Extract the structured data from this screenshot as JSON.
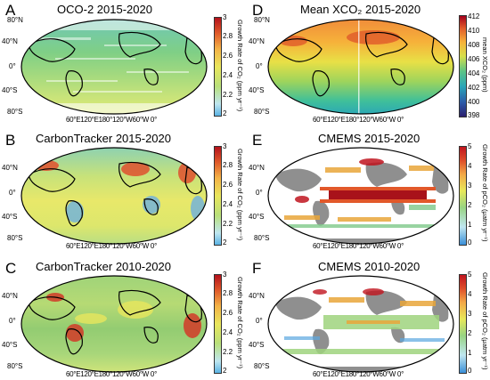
{
  "colors": {
    "ocean_gray": "#9a9a9a",
    "land_gray": "#7f7f7f",
    "growth_low": "#3a8fd8",
    "growth_mid": "#e8e85a",
    "growth_high": "#c0141e",
    "xco2_low": "#2b1f6e",
    "xco2_high": "#a3001b"
  },
  "panels": [
    {
      "label": "A",
      "title": "OCO-2 2015-2020",
      "lat_labels": [
        "80°N",
        "40°N",
        "0°",
        "40°S",
        "80°S"
      ],
      "lon_labels": "60°E120°E180°120°W60°W  0°",
      "colorbar": {
        "ticks": [
          "3",
          "2.8",
          "2.6",
          "2.4",
          "2.2",
          "2"
        ],
        "label": "Growth Rate of CO₂ (ppm yr⁻¹)",
        "scale": "growth"
      }
    },
    {
      "label": "B",
      "title": "CarbonTracker 2015-2020",
      "lat_labels": [
        "40°N",
        "0°",
        "40°S",
        "80°S"
      ],
      "lon_labels": "60°E120°E180°120°W60°W  0°",
      "colorbar": {
        "ticks": [
          "3",
          "2.8",
          "2.6",
          "2.4",
          "2.2",
          "2"
        ],
        "label": "Growth Rate of CO₂ (ppm yr⁻¹)",
        "scale": "growth"
      }
    },
    {
      "label": "C",
      "title": "CarbonTracker 2010-2020",
      "lat_labels": [
        "40°N",
        "0°",
        "40°S",
        "80°S"
      ],
      "lon_labels": "60°E120°E180°120°W60°W  0°",
      "colorbar": {
        "ticks": [
          "3",
          "2.8",
          "2.6",
          "2.4",
          "2.2",
          "2"
        ],
        "label": "Growth Rate of CO₂ (ppm yr⁻¹)",
        "scale": "growth"
      }
    },
    {
      "label": "D",
      "title": "Mean XCO₂ 2015-2020",
      "lat_labels": [
        "80°N",
        "40°N",
        "0°",
        "40°S",
        "80°S"
      ],
      "lon_labels": "60°E120°E180°120°W60°W  0°",
      "colorbar": {
        "ticks": [
          "412",
          "410",
          "408",
          "406",
          "404",
          "402",
          "400",
          "398"
        ],
        "label": "mean XCO₂ (ppm)",
        "scale": "xco2"
      }
    },
    {
      "label": "E",
      "title": "CMEMS 2015-2020",
      "lat_labels": [
        "40°N",
        "0°",
        "40°S",
        "80°S"
      ],
      "lon_labels": "60°E120°E180°120°W60°W  0°",
      "colorbar": {
        "ticks": [
          "5",
          "4",
          "3",
          "2",
          "1",
          "0"
        ],
        "label": "Growth Rate of pCO₂ (μatm yr⁻¹)",
        "scale": "pco2"
      }
    },
    {
      "label": "F",
      "title": "CMEMS 2010-2020",
      "lat_labels": [
        "40°N",
        "0°",
        "40°S",
        "80°S"
      ],
      "lon_labels": "60°E120°E180°120°W60°W  0°",
      "colorbar": {
        "ticks": [
          "5",
          "4",
          "3",
          "2",
          "1",
          "0"
        ],
        "label": "Growth Rate of pCO₂ (μatm yr⁻¹)",
        "scale": "pco2"
      }
    }
  ]
}
